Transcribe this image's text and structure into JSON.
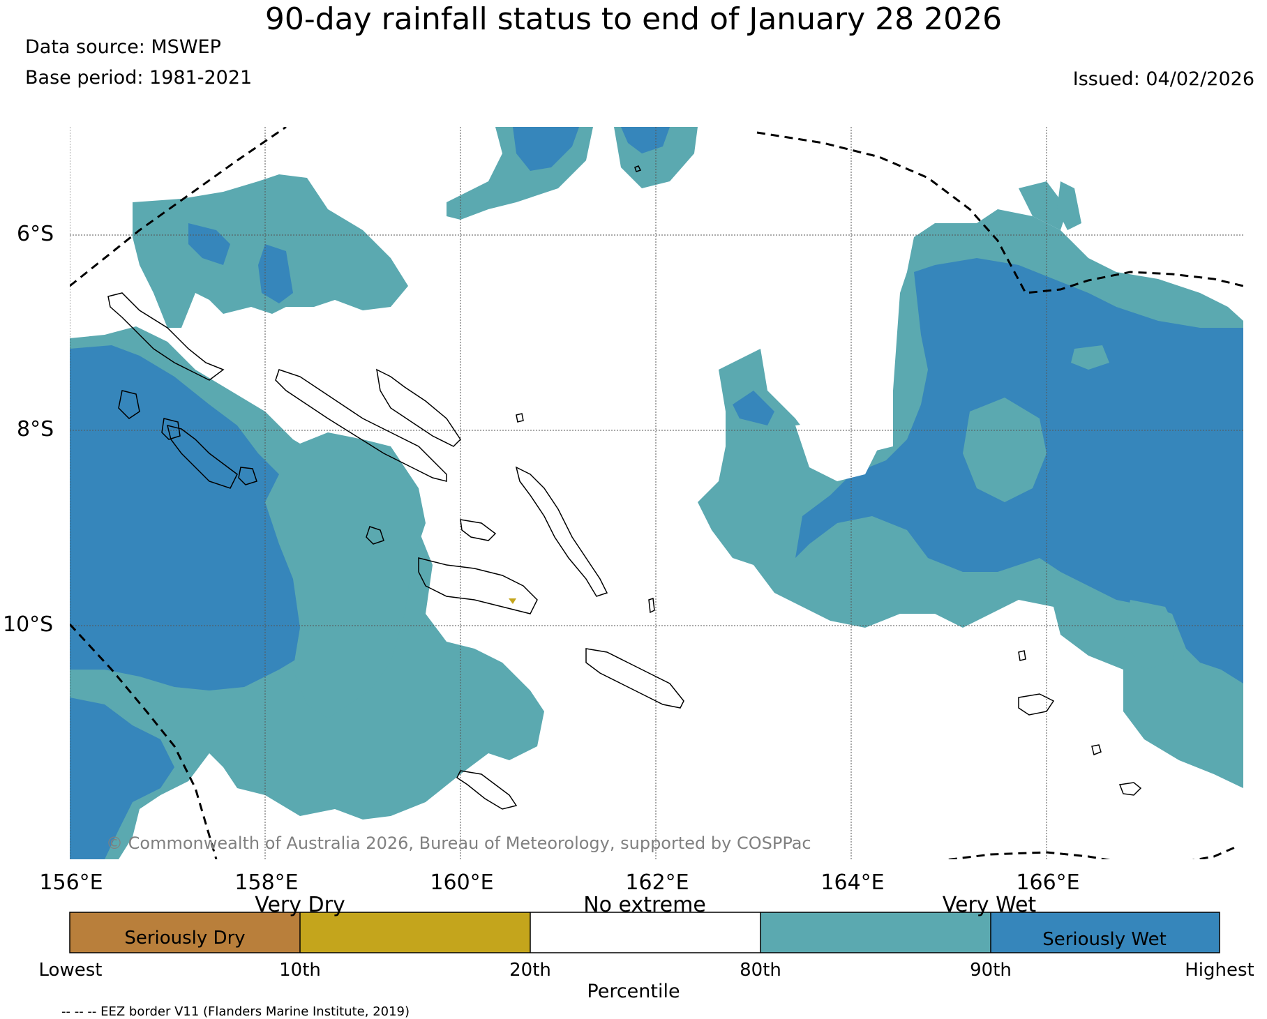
{
  "header": {
    "title": "90-day rainfall status to end of January 28 2026",
    "data_source": "Data source: MSWEP",
    "base_period": "Base period: 1981-2021",
    "issued": "Issued: 04/02/2026"
  },
  "map": {
    "lat_labels": [
      "6°S",
      "8°S",
      "10°S"
    ],
    "lon_labels": [
      "156°E",
      "158°E",
      "160°E",
      "162°E",
      "164°E",
      "166°E"
    ],
    "copyright": "© Commonwealth of Australia 2026, Bureau of Meteorology, supported by COSPPac",
    "colors": {
      "seriously_dry": "#b97f3b",
      "very_dry": "#c4a51c",
      "no_extreme": "#ffffff",
      "very_wet": "#5ba9b0",
      "seriously_wet": "#3686bb"
    }
  },
  "colorbar": {
    "top_labels": [
      "Very Dry",
      "No extreme",
      "Very Wet"
    ],
    "inner_labels": [
      "Seriously Dry",
      "Seriously Wet"
    ],
    "ticks": [
      "Lowest",
      "10th",
      "20th",
      "80th",
      "90th",
      "Highest"
    ],
    "xlabel": "Percentile"
  },
  "footer": {
    "eez_note": "-- -- -- EEZ border V11 (Flanders Marine Institute, 2019)"
  }
}
